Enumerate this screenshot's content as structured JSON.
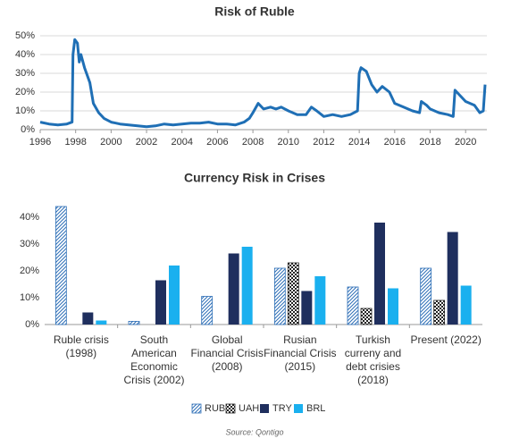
{
  "chart_data": [
    {
      "type": "line",
      "title": "Risk of Ruble",
      "color": "#1f6fb5",
      "grid": true,
      "xlim": [
        1996,
        2021.2
      ],
      "xticks": [
        1996,
        1998,
        2000,
        2002,
        2004,
        2006,
        2008,
        2010,
        2012,
        2014,
        2016,
        2018,
        2020
      ],
      "ylim": [
        0,
        50
      ],
      "yticks": [
        {
          "value": 0,
          "label": "0%"
        },
        {
          "value": 10,
          "label": "10%"
        },
        {
          "value": 20,
          "label": "20%"
        },
        {
          "value": 30,
          "label": "30%"
        },
        {
          "value": 40,
          "label": "40%"
        },
        {
          "value": 50,
          "label": "50%"
        }
      ],
      "x": [
        1996,
        1996.5,
        1997,
        1997.5,
        1997.8,
        1997.85,
        1997.95,
        1998.1,
        1998.2,
        1998.3,
        1998.5,
        1998.8,
        1999,
        1999.3,
        1999.6,
        2000,
        2000.5,
        2001,
        2001.5,
        2002,
        2002.5,
        2003,
        2003.5,
        2004,
        2004.5,
        2005,
        2005.5,
        2006,
        2006.5,
        2007,
        2007.5,
        2007.8,
        2008,
        2008.3,
        2008.6,
        2009,
        2009.3,
        2009.6,
        2010,
        2010.5,
        2011,
        2011.3,
        2011.6,
        2012,
        2012.5,
        2013,
        2013.5,
        2013.9,
        2014,
        2014.1,
        2014.4,
        2014.7,
        2015,
        2015.3,
        2015.7,
        2016,
        2016.5,
        2017,
        2017.4,
        2017.5,
        2017.8,
        2018,
        2018.5,
        2019,
        2019.3,
        2019.4,
        2019.6,
        2020,
        2020.5,
        2020.8,
        2021,
        2021.1
      ],
      "values": [
        4,
        3,
        2.5,
        3,
        4,
        40,
        48,
        46,
        36,
        40,
        33,
        25,
        14,
        9,
        6,
        4,
        3,
        2.5,
        2,
        1.5,
        2,
        3,
        2.5,
        3,
        3.5,
        3.5,
        4,
        3,
        3,
        2.5,
        4,
        6,
        9,
        14,
        11,
        12,
        11,
        12,
        10,
        8,
        8,
        12,
        10,
        7,
        8,
        7,
        8,
        10,
        30,
        33,
        31,
        24,
        20,
        23,
        20,
        14,
        12,
        10,
        9,
        15,
        13,
        11,
        9,
        8,
        7,
        21,
        19,
        15,
        13,
        9,
        10,
        24
      ]
    },
    {
      "type": "bar",
      "title": "Currency Risk in Crises",
      "grid": false,
      "categories": [
        "Ruble crisis\n(1998)",
        "South\nAmerican\nEconomic\nCrisis (2002)",
        "Global\nFinancial Crisis\n(2008)",
        "Rusian\nFinancial Crisis\n(2015)",
        "Turkish\ncurreny and\ndebt crisies\n(2018)",
        "Present (2022)"
      ],
      "ylim": [
        0,
        45
      ],
      "yticks": [
        {
          "value": 0,
          "label": "0%"
        },
        {
          "value": 10,
          "label": "10%"
        },
        {
          "value": 20,
          "label": "20%"
        },
        {
          "value": 30,
          "label": "30%"
        },
        {
          "value": 40,
          "label": "40%"
        }
      ],
      "series": [
        {
          "name": "RUB",
          "color": "#2e6fb7",
          "pattern": "hatch",
          "values": [
            44,
            1.2,
            10.5,
            21,
            14,
            21
          ]
        },
        {
          "name": "UAH",
          "color": "#222222",
          "pattern": "checker",
          "values": [
            null,
            null,
            null,
            23,
            6,
            9
          ]
        },
        {
          "name": "TRY",
          "color": "#1f2f5e",
          "pattern": "solid",
          "values": [
            4.5,
            16.5,
            26.5,
            12.5,
            38,
            34.5
          ]
        },
        {
          "name": "BRL",
          "color": "#1ab0ef",
          "pattern": "solid",
          "values": [
            1.5,
            22,
            29,
            18,
            13.5,
            14.5
          ]
        }
      ]
    }
  ],
  "source": "Source: Qontigo"
}
